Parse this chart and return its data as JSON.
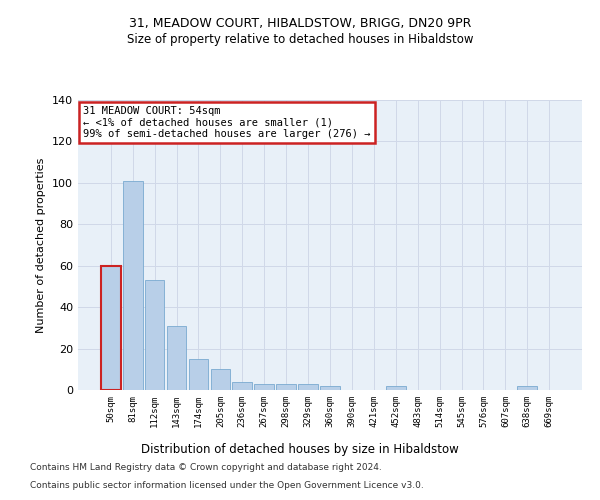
{
  "title": "31, MEADOW COURT, HIBALDSTOW, BRIGG, DN20 9PR",
  "subtitle": "Size of property relative to detached houses in Hibaldstow",
  "xlabel": "Distribution of detached houses by size in Hibaldstow",
  "ylabel": "Number of detached properties",
  "categories": [
    "50sqm",
    "81sqm",
    "112sqm",
    "143sqm",
    "174sqm",
    "205sqm",
    "236sqm",
    "267sqm",
    "298sqm",
    "329sqm",
    "360sqm",
    "390sqm",
    "421sqm",
    "452sqm",
    "483sqm",
    "514sqm",
    "545sqm",
    "576sqm",
    "607sqm",
    "638sqm",
    "669sqm"
  ],
  "values": [
    60,
    101,
    53,
    31,
    15,
    10,
    4,
    3,
    3,
    3,
    2,
    0,
    0,
    2,
    0,
    0,
    0,
    0,
    0,
    2,
    0
  ],
  "bar_color": "#b8cfe8",
  "bar_edge_color": "#7aaad0",
  "highlight_bar_color": "#cc2222",
  "annotation_text": "31 MEADOW COURT: 54sqm\n← <1% of detached houses are smaller (1)\n99% of semi-detached houses are larger (276) →",
  "annotation_box_color": "#ffffff",
  "annotation_box_edge_color": "#cc2222",
  "ylim": [
    0,
    140
  ],
  "yticks": [
    0,
    20,
    40,
    60,
    80,
    100,
    120,
    140
  ],
  "grid_color": "#d0d8e8",
  "background_color": "#e8f0f8",
  "footer_line1": "Contains HM Land Registry data © Crown copyright and database right 2024.",
  "footer_line2": "Contains public sector information licensed under the Open Government Licence v3.0.",
  "title_fontsize": 9,
  "subtitle_fontsize": 8.5
}
